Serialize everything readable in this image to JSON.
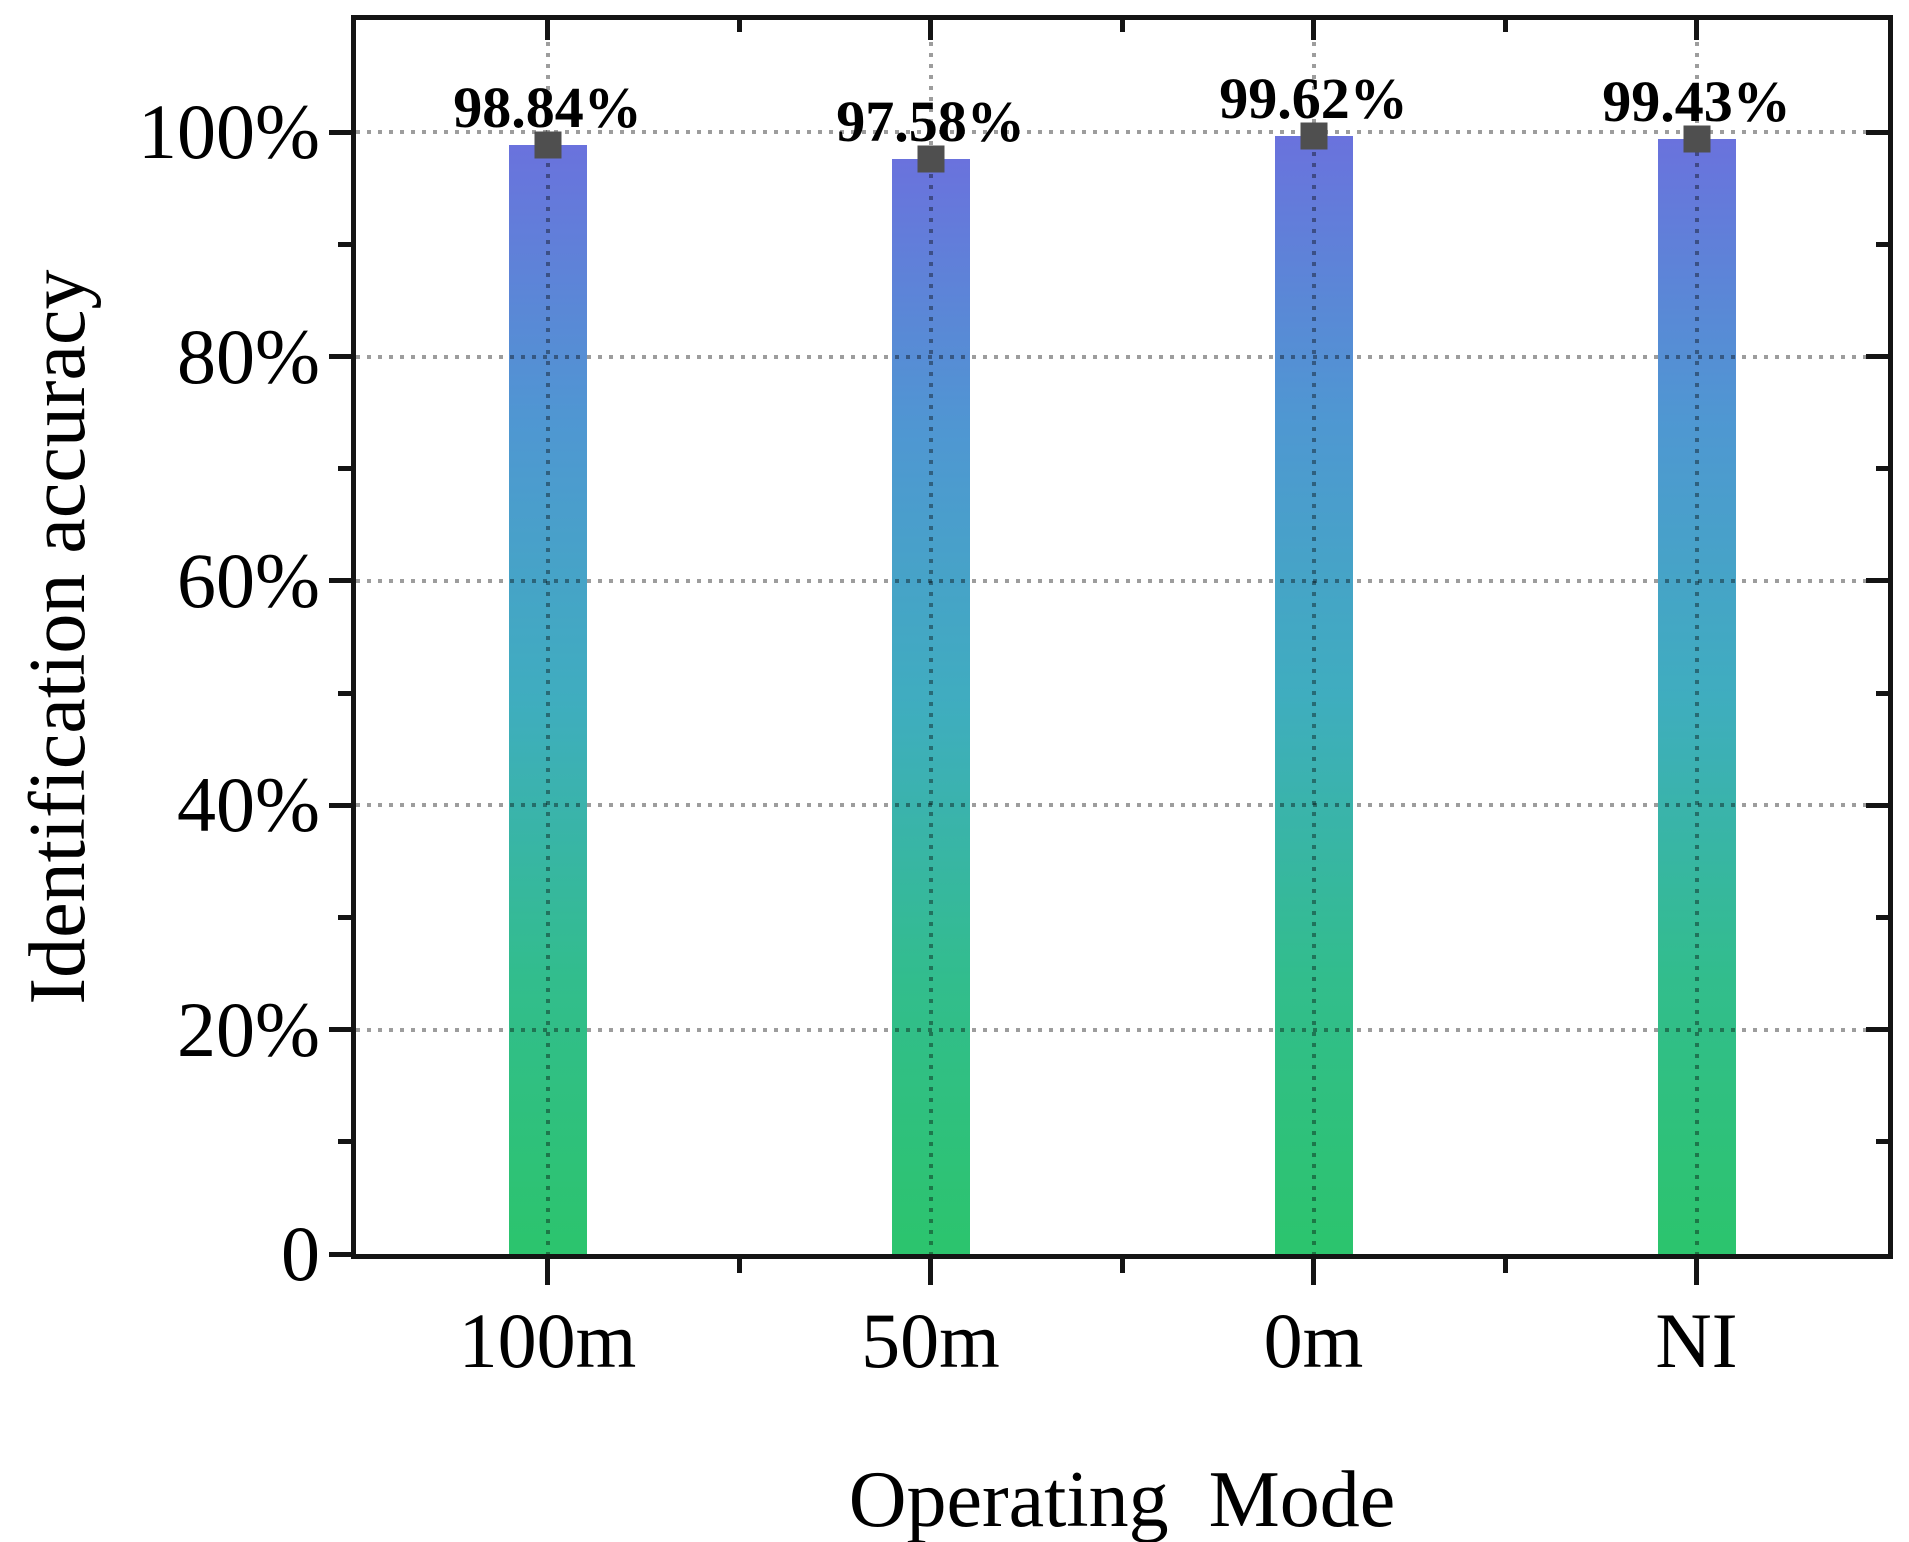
{
  "figure": {
    "background": "#ffffff"
  },
  "chart_data": {
    "type": "bar",
    "title": "",
    "xlabel": "Operating  Mode",
    "ylabel": "Identification accuracy",
    "categories": [
      "100m",
      "50m",
      "0m",
      "NI"
    ],
    "values": [
      98.84,
      97.58,
      99.62,
      99.43
    ],
    "value_labels": [
      "98.84%",
      "97.58%",
      "99.62%",
      "99.43%"
    ],
    "ylim": [
      0,
      110
    ],
    "yticks": [
      {
        "value": 0,
        "label": "0"
      },
      {
        "value": 20,
        "label": "20%"
      },
      {
        "value": 40,
        "label": "40%"
      },
      {
        "value": 60,
        "label": "60%"
      },
      {
        "value": 80,
        "label": "80%"
      },
      {
        "value": 100,
        "label": "100%"
      }
    ],
    "minor_ytick_values": [
      10,
      30,
      50,
      70,
      90
    ],
    "grid": {
      "horizontal": true,
      "vertical": true,
      "style": "dotted"
    },
    "legend": null,
    "marker_shape": "square",
    "colors": {
      "bar_gradient": [
        "#6a72dd",
        "#4f97d2",
        "#3fadbf",
        "#32bd8d",
        "#2cc46d"
      ],
      "marker": "#4f4f4f",
      "grid": "#9d9d9d",
      "axis": "#141414",
      "text": "#000000"
    }
  }
}
